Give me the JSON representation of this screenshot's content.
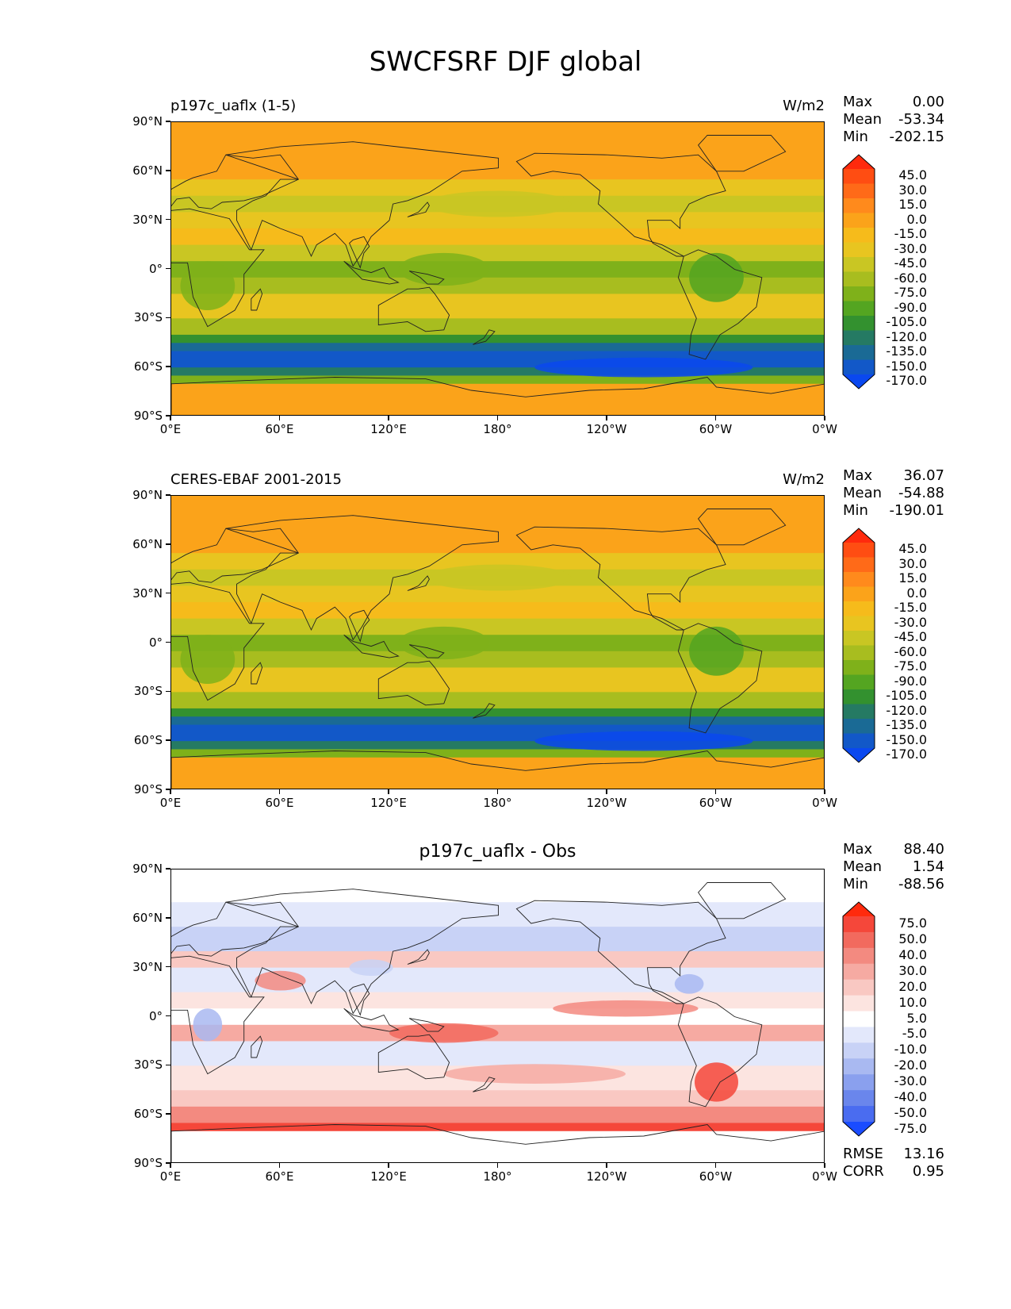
{
  "title": "SWCFSRF DJF global",
  "lon_ticks": [
    "0°E",
    "60°E",
    "120°E",
    "180°",
    "120°W",
    "60°W",
    "0°W"
  ],
  "lat_ticks": [
    "90°N",
    "60°N",
    "30°N",
    "0°",
    "30°S",
    "60°S",
    "90°S"
  ],
  "panels": [
    {
      "left_title": "p197c_uaflx (1-5)",
      "center_title": "",
      "units": "W/m2",
      "stats": {
        "max_label": "Max",
        "max": "0.00",
        "mean_label": "Mean",
        "mean": "-53.34",
        "min_label": "Min",
        "min": "-202.15"
      },
      "colorbar": {
        "labels": [
          "45.0",
          "30.0",
          "15.0",
          "0.0",
          "-15.0",
          "-30.0",
          "-45.0",
          "-60.0",
          "-75.0",
          "-90.0",
          "-105.0",
          "-120.0",
          "-135.0",
          "-150.0",
          "-170.0"
        ],
        "colors": [
          "#ff2a0d",
          "#ff4d12",
          "#ff6a18",
          "#ff8a1c",
          "#fba31a",
          "#f6bb1b",
          "#e8c520",
          "#c9c623",
          "#a8bd1f",
          "#7fb11a",
          "#54a521",
          "#33912f",
          "#257a63",
          "#1a6a95",
          "#1258c8",
          "#0a48ef"
        ]
      }
    },
    {
      "left_title": "CERES-EBAF 2001-2015",
      "center_title": "",
      "units": "W/m2",
      "stats": {
        "max_label": "Max",
        "max": "36.07",
        "mean_label": "Mean",
        "mean": "-54.88",
        "min_label": "Min",
        "min": "-190.01"
      },
      "colorbar": {
        "labels": [
          "45.0",
          "30.0",
          "15.0",
          "0.0",
          "-15.0",
          "-30.0",
          "-45.0",
          "-60.0",
          "-75.0",
          "-90.0",
          "-105.0",
          "-120.0",
          "-135.0",
          "-150.0",
          "-170.0"
        ],
        "colors": [
          "#ff2a0d",
          "#ff4d12",
          "#ff6a18",
          "#ff8a1c",
          "#fba31a",
          "#f6bb1b",
          "#e8c520",
          "#c9c623",
          "#a8bd1f",
          "#7fb11a",
          "#54a521",
          "#33912f",
          "#257a63",
          "#1a6a95",
          "#1258c8",
          "#0a48ef"
        ]
      }
    },
    {
      "left_title": "",
      "center_title": "p197c_uaflx - Obs",
      "units": "",
      "stats": {
        "max_label": "Max",
        "max": "88.40",
        "mean_label": "Mean",
        "mean": "1.54",
        "min_label": "Min",
        "min": "-88.56"
      },
      "rmse_label": "RMSE",
      "rmse": "13.16",
      "corr_label": "CORR",
      "corr": "0.95",
      "colorbar": {
        "labels": [
          "75.0",
          "50.0",
          "40.0",
          "30.0",
          "20.0",
          "10.0",
          "5.0",
          "-5.0",
          "-10.0",
          "-20.0",
          "-30.0",
          "-40.0",
          "-50.0",
          "-75.0"
        ],
        "colors": [
          "#ff2a0d",
          "#f5473a",
          "#f26a5e",
          "#f38a80",
          "#f6aaa2",
          "#f9c8c2",
          "#fce4e0",
          "#ffffff",
          "#e3e8fb",
          "#c8d2f6",
          "#a9b9f1",
          "#8aa0ee",
          "#6a86ec",
          "#4a6cf0",
          "#1a4cff"
        ]
      }
    }
  ]
}
